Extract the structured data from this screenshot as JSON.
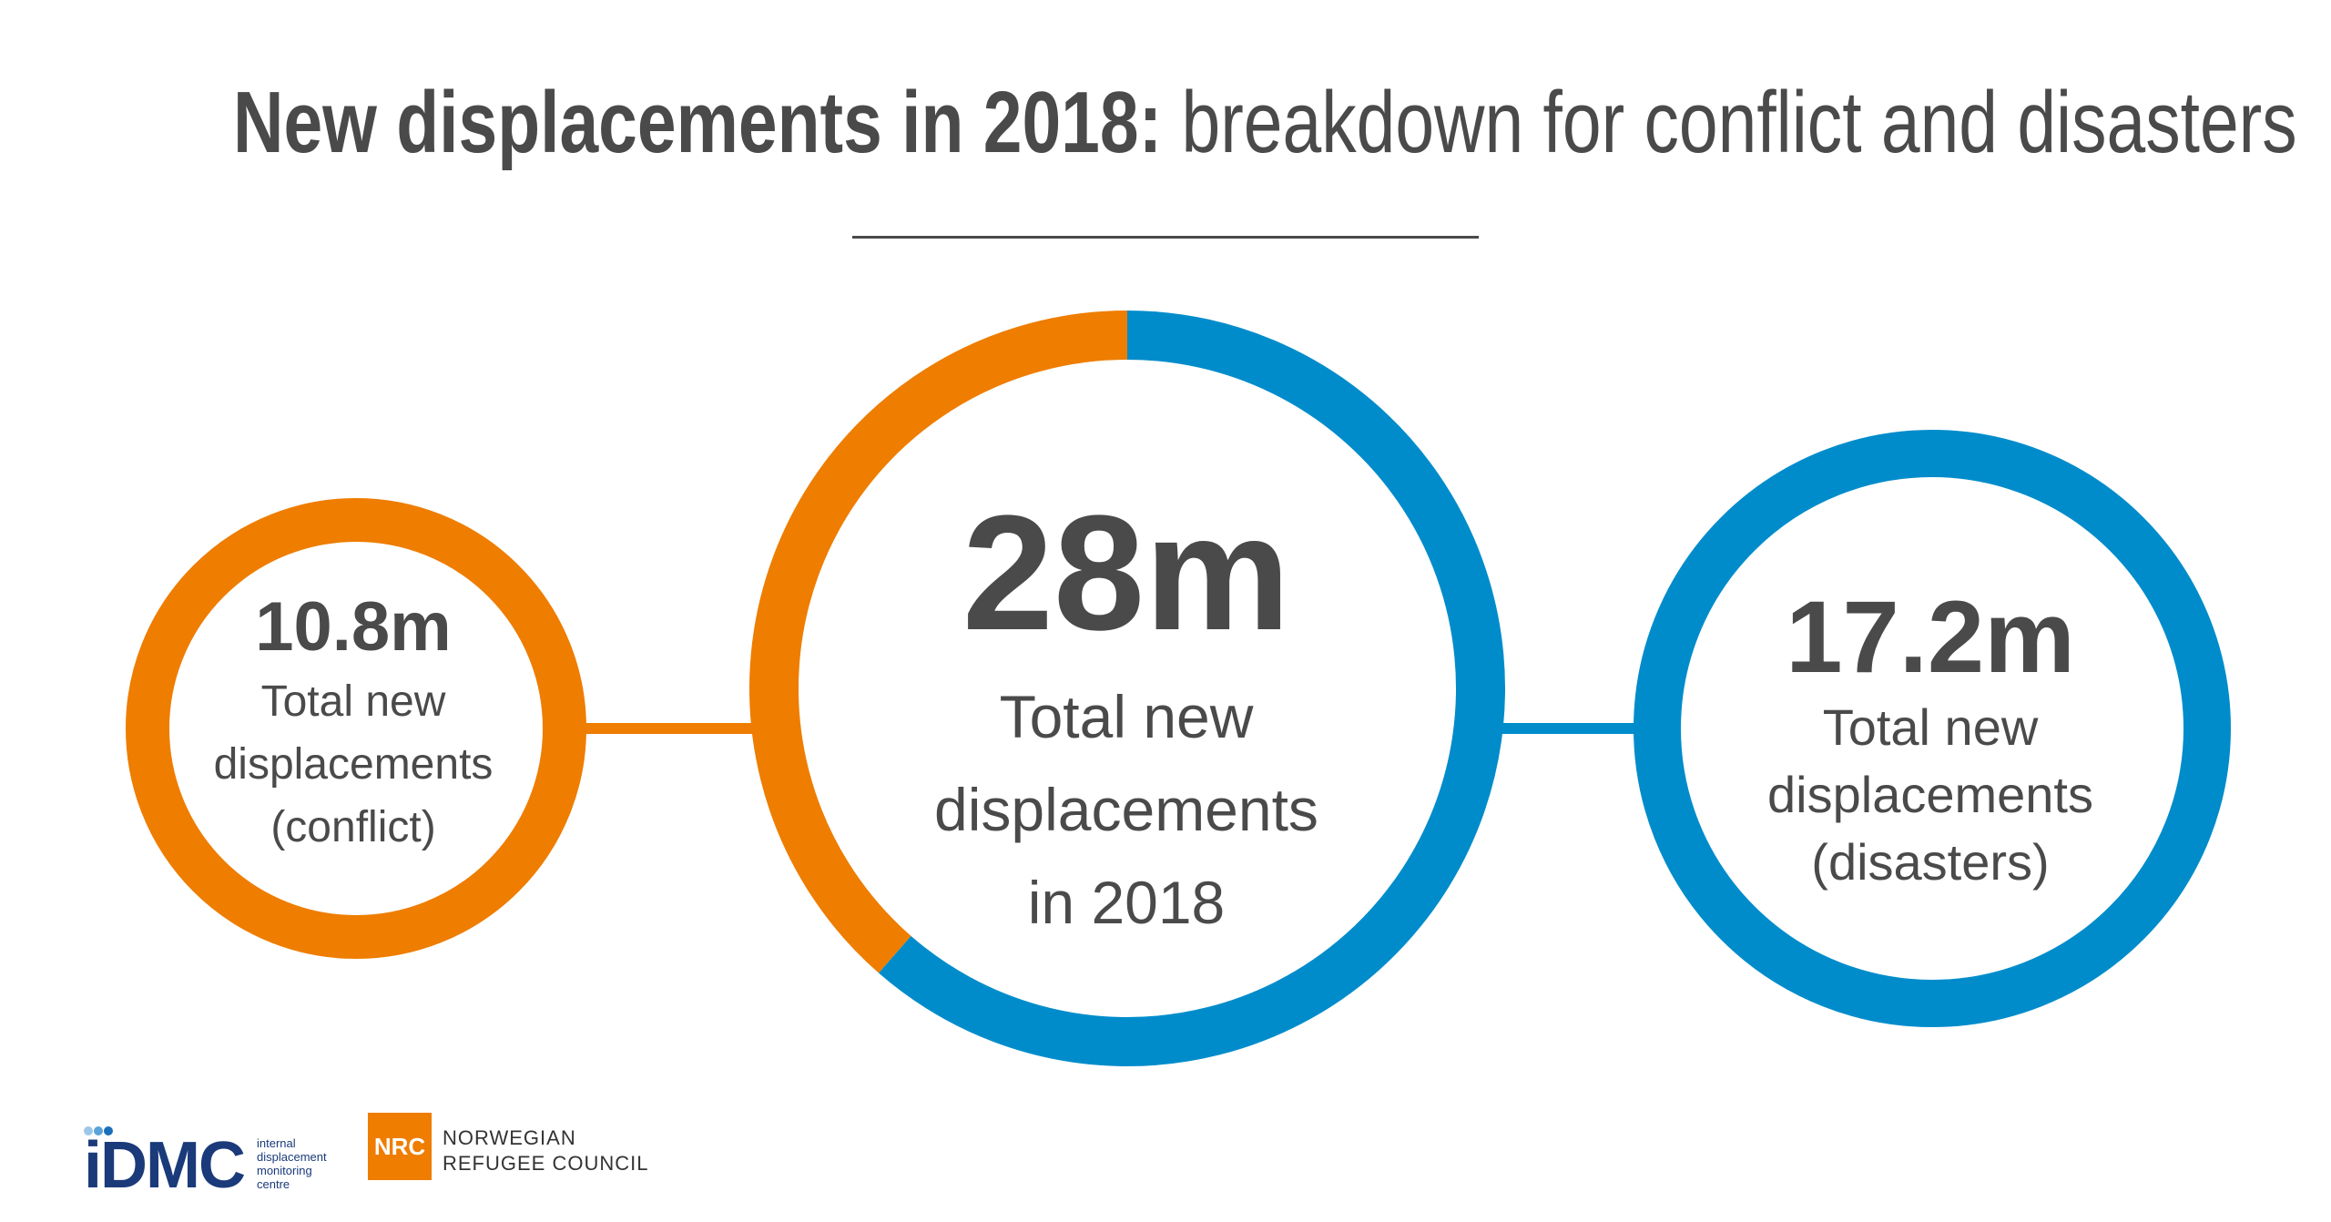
{
  "title": {
    "bold": "New displacements in 2018:",
    "light": "breakdown for conflict and disasters"
  },
  "colors": {
    "conflict": "#ee7d00",
    "disasters": "#008ccb",
    "text": "#4a4a4a",
    "idmc_blue": "#1a3a7a",
    "nrc_orange": "#ee7d00"
  },
  "chart_data": {
    "type": "pie",
    "title": "",
    "total": {
      "value": 28,
      "value_label": "28m",
      "label": "Total new displacements in 2018"
    },
    "series": [
      {
        "name": "Total new displacements (conflict)",
        "value": 10.8,
        "value_label": "10.8m"
      },
      {
        "name": "Total new displacements (disasters)",
        "value": 17.2,
        "value_label": "17.2m"
      }
    ]
  },
  "rings": {
    "left": {
      "value": "10.8m",
      "label": [
        "Total new",
        "displacements",
        "(conflict)"
      ]
    },
    "center": {
      "value": "28m",
      "label": [
        "Total new",
        "displacements",
        "in 2018"
      ]
    },
    "right": {
      "value": "17.2m",
      "label": [
        "Total new",
        "displacements",
        "(disasters)"
      ]
    }
  },
  "logos": {
    "idmc": {
      "word": "iDMC",
      "subtitle": [
        "internal",
        "displacement",
        "monitoring",
        "centre"
      ]
    },
    "nrc": {
      "box": "NRC",
      "text": [
        "NORWEGIAN",
        "REFUGEE COUNCIL"
      ]
    }
  }
}
